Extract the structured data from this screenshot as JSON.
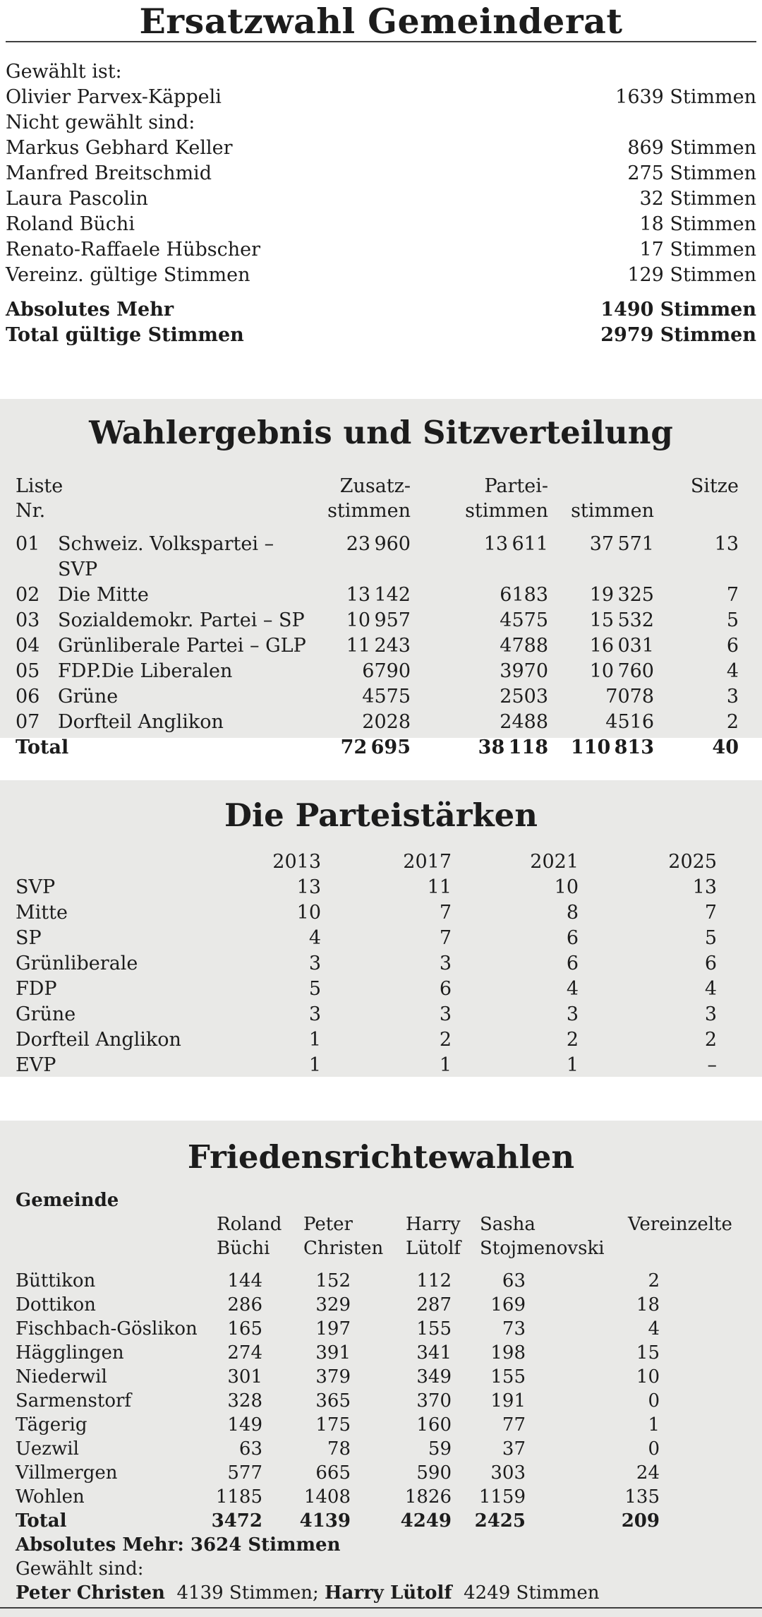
{
  "colors": {
    "panel_bg": "#e9e9e7",
    "text": "#1c1c1c",
    "rule": "#3f3f3f",
    "page_bg": "#ffffff"
  },
  "gemeinderat": {
    "title": "Ersatzwahl Gemeinderat",
    "elected_label": "Gewählt ist:",
    "elected": [
      {
        "name": "Olivier Parvex-Käppeli",
        "votes": "1639 Stimmen"
      }
    ],
    "not_elected_label": "Nicht gewählt sind:",
    "not_elected": [
      {
        "name": "Markus Gebhard Keller",
        "votes": "869 Stimmen"
      },
      {
        "name": "Manfred Breitschmid",
        "votes": "275 Stimmen"
      },
      {
        "name": "Laura Pascolin",
        "votes": "32 Stimmen"
      },
      {
        "name": "Roland Büchi",
        "votes": "18 Stimmen"
      },
      {
        "name": "Renato-Raffaele Hübscher",
        "votes": "17 Stimmen"
      },
      {
        "name": "Vereinz. gültige Stimmen",
        "votes": "129 Stimmen"
      }
    ],
    "summary": [
      {
        "label": "Absolutes Mehr",
        "votes": "1490 Stimmen"
      },
      {
        "label": "Total gültige Stimmen",
        "votes": "2979 Stimmen"
      }
    ]
  },
  "sitzverteilung": {
    "title": "Wahlergebnis und Sitzverteilung",
    "header": {
      "nr_line1": "Liste",
      "nr_line2": "Nr.",
      "zusatz_line1": "Zusatz-",
      "zusatz_line2": "stimmen",
      "partei_line1": "Partei-",
      "partei_line2": "stimmen",
      "stimmen_line2": "stimmen",
      "sitze": "Sitze"
    },
    "rows": [
      {
        "nr": "01",
        "name": "Schweiz. Volkspartei – SVP",
        "zusatz": "23 960",
        "partei": "13 611",
        "stimmen": "37 571",
        "sitze": "13"
      },
      {
        "nr": "02",
        "name": "Die Mitte",
        "zusatz": "13 142",
        "partei": "6183",
        "stimmen": "19 325",
        "sitze": "7"
      },
      {
        "nr": "03",
        "name": "Sozialdemokr. Partei – SP",
        "zusatz": "10 957",
        "partei": "4575",
        "stimmen": "15 532",
        "sitze": "5"
      },
      {
        "nr": "04",
        "name": "Grünliberale Partei – GLP",
        "zusatz": "11 243",
        "partei": "4788",
        "stimmen": "16 031",
        "sitze": "6"
      },
      {
        "nr": "05",
        "name": "FDP.Die Liberalen",
        "zusatz": "6790",
        "partei": "3970",
        "stimmen": "10 760",
        "sitze": "4"
      },
      {
        "nr": "06",
        "name": "Grüne",
        "zusatz": "4575",
        "partei": "2503",
        "stimmen": "7078",
        "sitze": "3"
      },
      {
        "nr": "07",
        "name": "Dorfteil Anglikon",
        "zusatz": "2028",
        "partei": "2488",
        "stimmen": "4516",
        "sitze": "2"
      }
    ],
    "total": {
      "label": "Total",
      "zusatz": "72 695",
      "partei": "38 118",
      "stimmen": "110 813",
      "sitze": "40"
    }
  },
  "parteistaerken": {
    "title": "Die Parteistärken",
    "years": [
      "2013",
      "2017",
      "2021",
      "2025"
    ],
    "rows": [
      {
        "party": "SVP",
        "values": [
          "13",
          "11",
          "10",
          "13"
        ]
      },
      {
        "party": "Mitte",
        "values": [
          "10",
          "7",
          "8",
          "7"
        ]
      },
      {
        "party": "SP",
        "values": [
          "4",
          "7",
          "6",
          "5"
        ]
      },
      {
        "party": "Grünliberale",
        "values": [
          "3",
          "3",
          "6",
          "6"
        ]
      },
      {
        "party": "FDP",
        "values": [
          "5",
          "6",
          "4",
          "4"
        ]
      },
      {
        "party": "Grüne",
        "values": [
          "3",
          "3",
          "3",
          "3"
        ]
      },
      {
        "party": "Dorfteil Anglikon",
        "values": [
          "1",
          "2",
          "2",
          "2"
        ]
      },
      {
        "party": "EVP",
        "values": [
          "1",
          "1",
          "1",
          "–"
        ]
      }
    ]
  },
  "friedensrichter": {
    "title": "Friedensrichtewahlen",
    "gemeinde_label": "Gemeinde",
    "candidates": [
      {
        "first": "Roland",
        "last": "Büchi"
      },
      {
        "first": "Peter",
        "last": "Christen"
      },
      {
        "first": "Harry",
        "last": "Lütolf"
      },
      {
        "first": "Sasha",
        "last": "Stojmenovski"
      },
      {
        "first": "Vereinzelte",
        "last": ""
      }
    ],
    "rows": [
      {
        "gemeinde": "Büttikon",
        "values": [
          "144",
          "152",
          "112",
          "63",
          "2"
        ]
      },
      {
        "gemeinde": "Dottikon",
        "values": [
          "286",
          "329",
          "287",
          "169",
          "18"
        ]
      },
      {
        "gemeinde": "Fischbach-Göslikon",
        "values": [
          "165",
          "197",
          "155",
          "73",
          "4"
        ]
      },
      {
        "gemeinde": "Hägglingen",
        "values": [
          "274",
          "391",
          "341",
          "198",
          "15"
        ]
      },
      {
        "gemeinde": "Niederwil",
        "values": [
          "301",
          "379",
          "349",
          "155",
          "10"
        ]
      },
      {
        "gemeinde": "Sarmenstorf",
        "values": [
          "328",
          "365",
          "370",
          "191",
          "0"
        ]
      },
      {
        "gemeinde": "Tägerig",
        "values": [
          "149",
          "175",
          "160",
          "77",
          "1"
        ]
      },
      {
        "gemeinde": "Uezwil",
        "values": [
          "63",
          "78",
          "59",
          "37",
          "0"
        ]
      },
      {
        "gemeinde": "Villmergen",
        "values": [
          "577",
          "665",
          "590",
          "303",
          "24"
        ]
      },
      {
        "gemeinde": "Wohlen",
        "values": [
          "1185",
          "1408",
          "1826",
          "1159",
          "135"
        ]
      }
    ],
    "total": {
      "label": "Total",
      "values": [
        "3472",
        "4139",
        "4249",
        "2425",
        "209"
      ]
    },
    "absolutes_mehr": "Absolutes Mehr: 3624 Stimmen",
    "gewaehlt_label": "Gewählt sind:",
    "gewaehlt": [
      {
        "name": "Peter Christen",
        "votes": "4139 Stimmen;"
      },
      {
        "name": "Harry Lütolf",
        "votes": "4249 Stimmen"
      }
    ]
  }
}
